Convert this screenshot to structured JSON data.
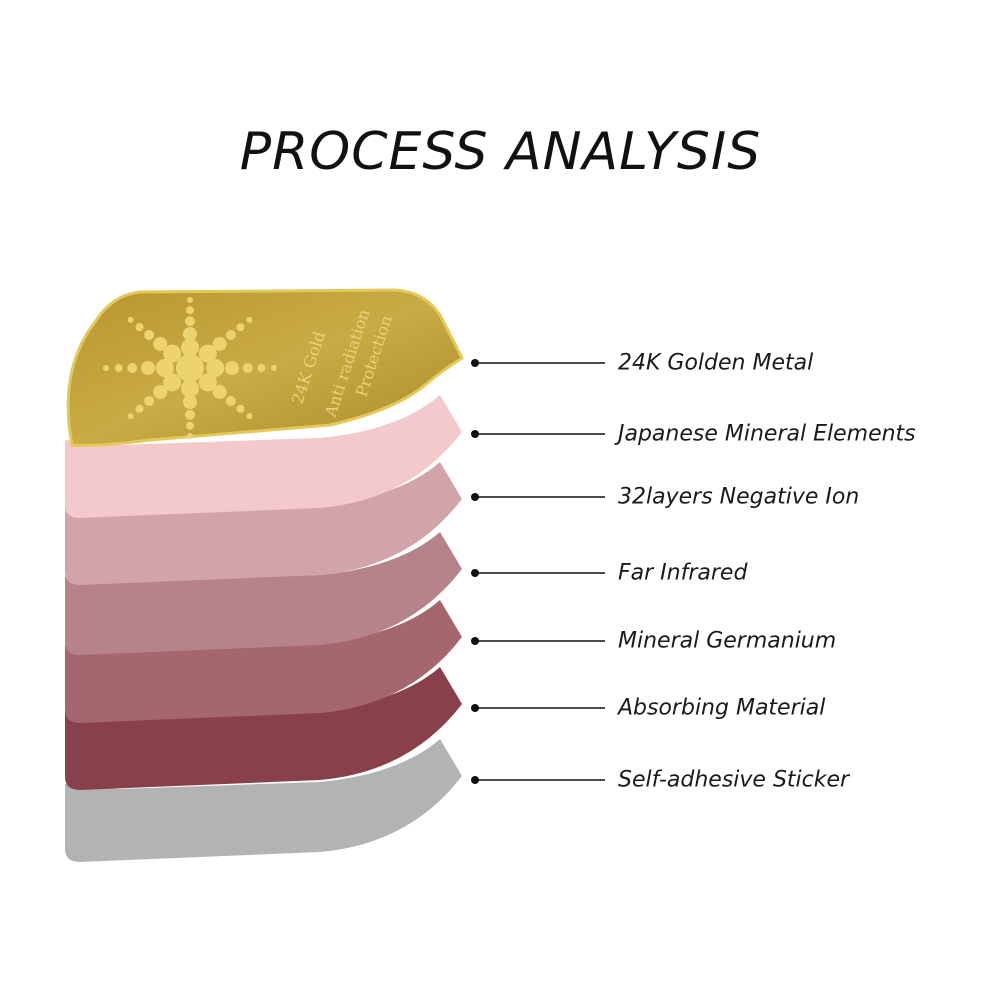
{
  "title": "PROCESS ANALYSIS",
  "badge_text": [
    "24K Gold",
    "Anti radiation",
    "Protection"
  ],
  "layers": [
    {
      "label": "24K Golden Metal",
      "color": "#c9a83a"
    },
    {
      "label": "Japanese Mineral Elements",
      "color": "#f3c9cb"
    },
    {
      "label": "32layers Negative Ion",
      "color": "#d1a4aa"
    },
    {
      "label": "Far Infrared",
      "color": "#b58389"
    },
    {
      "label": "Mineral Germanium",
      "color": "#a5666d"
    },
    {
      "label": "Absorbing Material",
      "color": "#88414a"
    },
    {
      "label": "Self-adhesive Sticker",
      "color": "#b3b3b3"
    }
  ]
}
